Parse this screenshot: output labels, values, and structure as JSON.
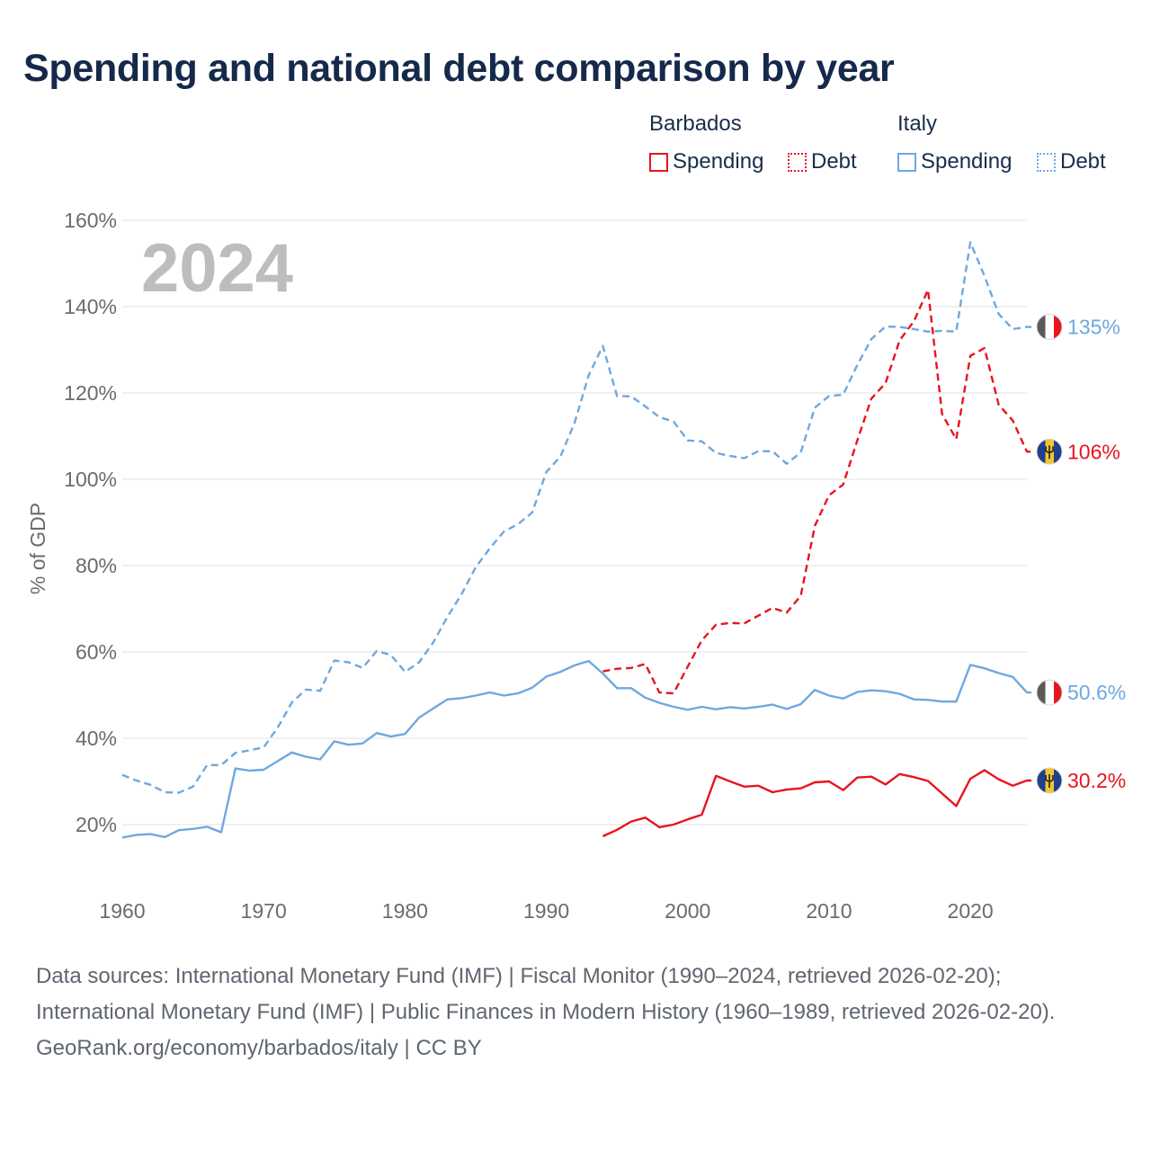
{
  "title": "Spending and national debt comparison by year",
  "legend": {
    "groups": [
      {
        "name": "Barbados",
        "items": [
          "Spending",
          "Debt"
        ]
      },
      {
        "name": "Italy",
        "items": [
          "Spending",
          "Debt"
        ]
      }
    ]
  },
  "colors": {
    "barbados": "#e8141d",
    "italy": "#6ea8e0",
    "grid": "#e6e6e6",
    "year_watermark": "#bdbdbd"
  },
  "chart_data": {
    "type": "line",
    "title": "Spending and national debt comparison by year",
    "current_year": "2024",
    "ylabel": "% of GDP",
    "xlabel": "",
    "xlim": [
      1960,
      2025
    ],
    "ylim": [
      10,
      162
    ],
    "x_ticks": [
      1960,
      1970,
      1980,
      1990,
      2000,
      2010,
      2020
    ],
    "y_ticks": [
      20,
      40,
      60,
      80,
      100,
      120,
      140,
      160
    ],
    "y_tick_labels": [
      "20%",
      "40%",
      "60%",
      "80%",
      "100%",
      "120%",
      "140%",
      "160%"
    ],
    "series": [
      {
        "name": "Italy Debt",
        "country": "Italy",
        "metric": "Debt",
        "style": "dashed",
        "color": "#6ea8e0",
        "x": [
          1960,
          1961,
          1962,
          1963,
          1964,
          1965,
          1966,
          1967,
          1968,
          1969,
          1970,
          1971,
          1972,
          1973,
          1974,
          1975,
          1976,
          1977,
          1978,
          1979,
          1980,
          1981,
          1982,
          1983,
          1984,
          1985,
          1986,
          1987,
          1988,
          1989,
          1990,
          1991,
          1992,
          1993,
          1994,
          1995,
          1996,
          1997,
          1998,
          1999,
          2000,
          2001,
          2002,
          2003,
          2004,
          2005,
          2006,
          2007,
          2008,
          2009,
          2010,
          2011,
          2012,
          2013,
          2014,
          2015,
          2016,
          2017,
          2018,
          2019,
          2020,
          2021,
          2022,
          2023,
          2024
        ],
        "values": [
          31.5,
          30.2,
          29.2,
          27.5,
          27.4,
          28.8,
          33.8,
          33.8,
          36.6,
          37.2,
          37.9,
          42.5,
          48.3,
          51.3,
          51.0,
          58.0,
          57.6,
          56.3,
          60.2,
          59.3,
          55.4,
          57.6,
          62.2,
          68.1,
          73.4,
          79.6,
          84.0,
          87.9,
          89.6,
          92.3,
          101.7,
          105.3,
          113.1,
          124.1,
          130.9,
          119.3,
          119.2,
          116.9,
          114.4,
          113.4,
          109.0,
          108.8,
          106.1,
          105.4,
          104.9,
          106.5,
          106.5,
          103.6,
          106.2,
          116.6,
          119.3,
          119.6,
          126.5,
          132.5,
          135.4,
          135.3,
          134.8,
          134.2,
          134.4,
          134.2,
          154.9,
          147.1,
          138.3,
          134.8,
          135.3
        ]
      },
      {
        "name": "Italy Spending",
        "country": "Italy",
        "metric": "Spending",
        "style": "solid",
        "color": "#6ea8e0",
        "x": [
          1960,
          1961,
          1962,
          1963,
          1964,
          1965,
          1966,
          1967,
          1968,
          1969,
          1970,
          1971,
          1972,
          1973,
          1974,
          1975,
          1976,
          1977,
          1978,
          1979,
          1980,
          1981,
          1982,
          1983,
          1984,
          1985,
          1986,
          1987,
          1988,
          1989,
          1990,
          1991,
          1992,
          1993,
          1994,
          1995,
          1996,
          1997,
          1998,
          1999,
          2000,
          2001,
          2002,
          2003,
          2004,
          2005,
          2006,
          2007,
          2008,
          2009,
          2010,
          2011,
          2012,
          2013,
          2014,
          2015,
          2016,
          2017,
          2018,
          2019,
          2020,
          2021,
          2022,
          2023,
          2024
        ],
        "values": [
          17.0,
          17.6,
          17.8,
          17.1,
          18.7,
          19.0,
          19.5,
          18.2,
          33.0,
          32.5,
          32.7,
          34.7,
          36.7,
          35.7,
          35.1,
          39.3,
          38.5,
          38.8,
          41.2,
          40.4,
          41.0,
          44.8,
          46.9,
          49.0,
          49.3,
          49.9,
          50.6,
          49.9,
          50.4,
          51.7,
          54.3,
          55.4,
          56.9,
          57.9,
          55.0,
          51.6,
          51.6,
          49.4,
          48.2,
          47.3,
          46.6,
          47.3,
          46.7,
          47.2,
          46.9,
          47.3,
          47.8,
          46.8,
          47.9,
          51.2,
          49.9,
          49.2,
          50.7,
          51.1,
          50.9,
          50.3,
          49.0,
          48.9,
          48.5,
          48.5,
          57.0,
          56.2,
          55.1,
          54.2,
          50.6
        ]
      },
      {
        "name": "Barbados Debt",
        "country": "Barbados",
        "metric": "Debt",
        "style": "dashed",
        "color": "#e8141d",
        "x": [
          1994,
          1995,
          1996,
          1997,
          1998,
          1999,
          2000,
          2001,
          2002,
          2003,
          2004,
          2005,
          2006,
          2007,
          2008,
          2009,
          2010,
          2011,
          2012,
          2013,
          2014,
          2015,
          2016,
          2017,
          2018,
          2019,
          2020,
          2021,
          2022,
          2023,
          2024
        ],
        "values": [
          55.5,
          56.1,
          56.3,
          57.2,
          50.6,
          50.4,
          56.6,
          62.7,
          66.3,
          66.7,
          66.6,
          68.4,
          70.2,
          69.1,
          73.0,
          89.2,
          96.3,
          98.8,
          109.0,
          118.7,
          122.3,
          132.2,
          136.6,
          143.9,
          115.1,
          109.3,
          128.6,
          130.4,
          117.3,
          113.6,
          106.4
        ]
      },
      {
        "name": "Barbados Spending",
        "country": "Barbados",
        "metric": "Spending",
        "style": "solid",
        "color": "#e8141d",
        "x": [
          1994,
          1995,
          1996,
          1997,
          1998,
          1999,
          2000,
          2001,
          2002,
          2003,
          2004,
          2005,
          2006,
          2007,
          2008,
          2009,
          2010,
          2011,
          2012,
          2013,
          2014,
          2015,
          2016,
          2017,
          2018,
          2019,
          2020,
          2021,
          2022,
          2023,
          2024
        ],
        "values": [
          17.3,
          18.8,
          20.7,
          21.6,
          19.4,
          20.0,
          21.2,
          22.3,
          31.3,
          30.0,
          28.8,
          29.0,
          27.5,
          28.1,
          28.4,
          29.8,
          30.0,
          28.0,
          30.9,
          31.1,
          29.3,
          31.7,
          31.0,
          30.1,
          27.2,
          24.3,
          30.6,
          32.6,
          30.5,
          29.0,
          30.2
        ]
      }
    ],
    "end_labels": [
      {
        "series": "Italy Debt",
        "text": "135%",
        "value": 135.3
      },
      {
        "series": "Barbados Debt",
        "text": "106%",
        "value": 106.4
      },
      {
        "series": "Italy Spending",
        "text": "50.6%",
        "value": 50.6
      },
      {
        "series": "Barbados Spending",
        "text": "30.2%",
        "value": 30.2
      }
    ]
  },
  "footer": {
    "sources": "Data sources: International Monetary Fund (IMF) | Fiscal Monitor (1990–2024, retrieved 2026-02-20); International Monetary Fund (IMF) | Public Finances in Modern History (1960–1989, retrieved 2026-02-20).",
    "credit": "GeoRank.org/economy/barbados/italy | CC BY"
  }
}
